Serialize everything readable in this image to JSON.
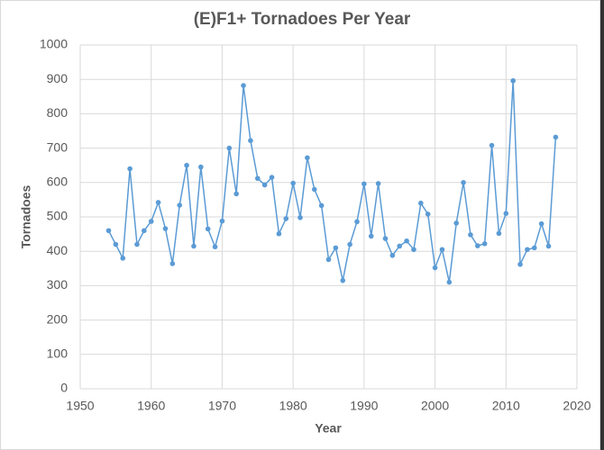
{
  "chart_data": {
    "type": "line",
    "title": "(E)F1+ Tornadoes Per Year",
    "x_label": "Year",
    "y_label": "Tornadoes",
    "x": [
      1954,
      1955,
      1956,
      1957,
      1958,
      1959,
      1960,
      1961,
      1962,
      1963,
      1964,
      1965,
      1966,
      1967,
      1968,
      1969,
      1970,
      1971,
      1972,
      1973,
      1974,
      1975,
      1976,
      1977,
      1978,
      1979,
      1980,
      1981,
      1982,
      1983,
      1984,
      1985,
      1986,
      1987,
      1988,
      1989,
      1990,
      1991,
      1992,
      1993,
      1994,
      1995,
      1996,
      1997,
      1998,
      1999,
      2000,
      2001,
      2002,
      2003,
      2004,
      2005,
      2006,
      2007,
      2008,
      2009,
      2010,
      2011,
      2012,
      2013,
      2014,
      2015,
      2016,
      2017
    ],
    "values": [
      460,
      420,
      380,
      640,
      420,
      460,
      487,
      542,
      466,
      364,
      534,
      650,
      415,
      645,
      465,
      413,
      488,
      700,
      567,
      882,
      722,
      612,
      593,
      615,
      451,
      495,
      598,
      498,
      672,
      580,
      533,
      376,
      410,
      315,
      420,
      486,
      596,
      444,
      597,
      437,
      388,
      415,
      430,
      405,
      540,
      508,
      352,
      405,
      310,
      482,
      600,
      448,
      416,
      422,
      708,
      452,
      510,
      896,
      362,
      405,
      410,
      480,
      415,
      732
    ],
    "color": "#5b9bd5",
    "xlim": [
      1950,
      2020
    ],
    "xticks": [
      1950,
      1960,
      1970,
      1980,
      1990,
      2000,
      2010,
      2020
    ],
    "ylim": [
      0,
      1000
    ],
    "yticks": [
      0,
      100,
      200,
      300,
      400,
      500,
      600,
      700,
      800,
      900,
      1000
    ],
    "grid": true
  }
}
